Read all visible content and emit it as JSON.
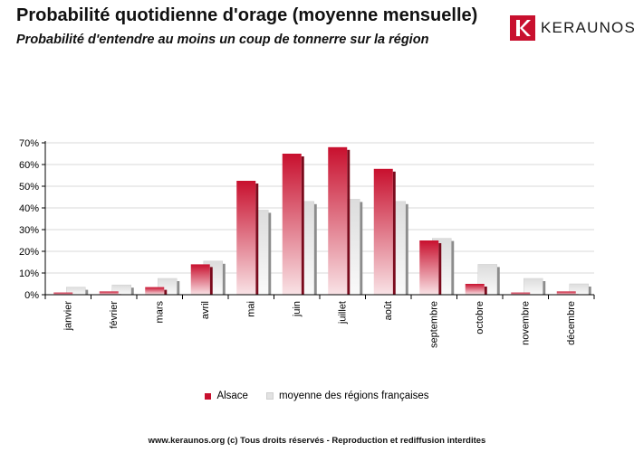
{
  "header": {
    "title": "Probabilité quotidienne d'orage (moyenne mensuelle)",
    "subtitle": "Probabilité d'entendre au moins un coup de tonnerre sur la région"
  },
  "logo": {
    "text": "KERAUNOS",
    "mark_icon": "keraunos-k-logo"
  },
  "footer": {
    "text": "www.keraunos.org  (c) Tous droits réservés - Reproduction et rediffusion interdites"
  },
  "colors": {
    "alsace": "#c8102e",
    "alsace_light": "#f6dde1",
    "france": "#e2e2e2",
    "france_shadow": "#8c8c8c",
    "grid": "#d9d9d9"
  },
  "chart_data": {
    "type": "bar",
    "title": "Probabilité quotidienne d'orage (moyenne mensuelle)",
    "subtitle": "Probabilité d'entendre au moins un coup de tonnerre sur la région",
    "categories": [
      "janvier",
      "février",
      "mars",
      "avril",
      "mai",
      "juin",
      "juillet",
      "août",
      "septembre",
      "octobre",
      "novembre",
      "décembre"
    ],
    "series": [
      {
        "name": "Alsace",
        "values": [
          1,
          1.5,
          3.5,
          14,
          52.5,
          65,
          68,
          58,
          25,
          5,
          1,
          1.5
        ]
      },
      {
        "name": "moyenne des régions françaises",
        "values": [
          3.5,
          4.5,
          7.5,
          15.5,
          39,
          43,
          44,
          43,
          26,
          14,
          7.5,
          5
        ]
      }
    ],
    "yticks": [
      "0%",
      "10%",
      "20%",
      "30%",
      "40%",
      "50%",
      "60%",
      "70%"
    ],
    "ylim": [
      0,
      70
    ],
    "grid": true,
    "legend_position": "bottom"
  }
}
